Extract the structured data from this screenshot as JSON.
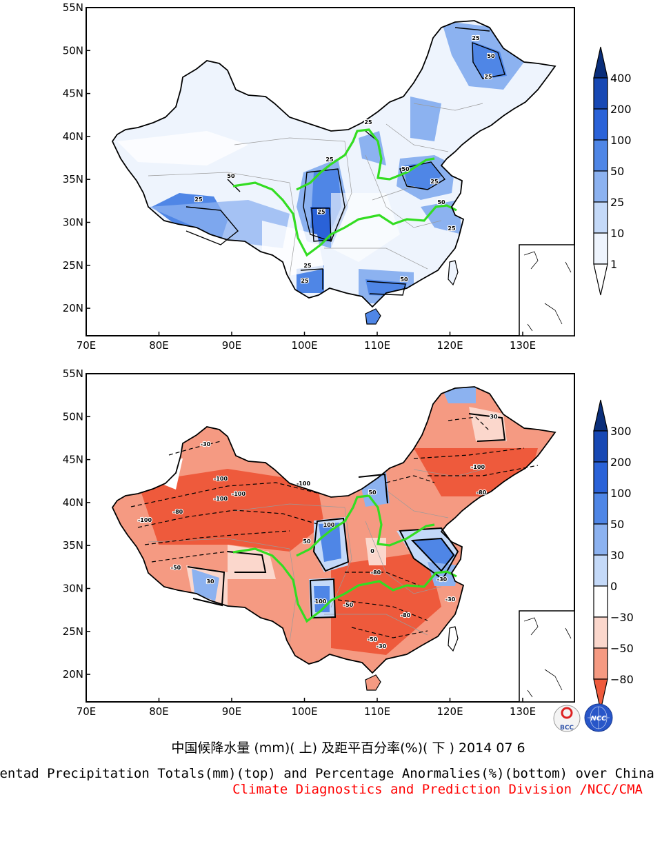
{
  "maps": [
    {
      "id": "top",
      "lat_ticks": [
        "55N",
        "50N",
        "45N",
        "40N",
        "35N",
        "30N",
        "25N",
        "20N"
      ],
      "lon_ticks": [
        "70E",
        "80E",
        "90E",
        "100E",
        "110E",
        "120E",
        "130E"
      ],
      "contour_labels": [
        "25",
        "50",
        "25",
        "50",
        "25",
        "25",
        "25",
        "25",
        "50",
        "25",
        "25",
        "50",
        "25",
        "50",
        "25"
      ],
      "colorbar": {
        "labels": [
          "400",
          "200",
          "100",
          "50",
          "25",
          "10",
          "1"
        ],
        "colors": [
          "#0a2e7a",
          "#1748b4",
          "#2a62d8",
          "#4f86e6",
          "#8cb2f0",
          "#c4d9f8",
          "#eef4fd",
          "#ffffff"
        ]
      }
    },
    {
      "id": "bottom",
      "lat_ticks": [
        "55N",
        "50N",
        "45N",
        "40N",
        "35N",
        "30N",
        "25N",
        "20N"
      ],
      "lon_ticks": [
        "70E",
        "80E",
        "90E",
        "100E",
        "110E",
        "120E",
        "130E"
      ],
      "contour_labels": [
        "-100",
        "-100",
        "-100",
        "-100",
        "-100",
        "-80",
        "-80",
        "-50",
        "-50",
        "-30",
        "30",
        "50",
        "100",
        "100",
        "30",
        "-30",
        "-80",
        "-100",
        "-50",
        "-30",
        "-80",
        "-30",
        "0",
        "50"
      ],
      "colorbar": {
        "labels": [
          "300",
          "200",
          "100",
          "50",
          "30",
          "0",
          "−30",
          "−50",
          "−80"
        ],
        "colors": [
          "#0a2e7a",
          "#1748b4",
          "#2a62d8",
          "#4f86e6",
          "#8cb2f0",
          "#c4d9f8",
          "#ffffff",
          "#fbd7cc",
          "#f59a82",
          "#ee5a3c"
        ]
      }
    }
  ],
  "logos": [
    "BCC",
    "NCC"
  ],
  "caption": {
    "chinese": "中国候降水量 (mm)( 上) 及距平百分率(%)( 下 ) 2014 07 6",
    "english": "Pentad Precipitation Totals(mm)(top) and Percentage Anormalies(%)(bottom) over China",
    "org": "Climate Diagnostics and Prediction Division /NCC/CMA"
  }
}
